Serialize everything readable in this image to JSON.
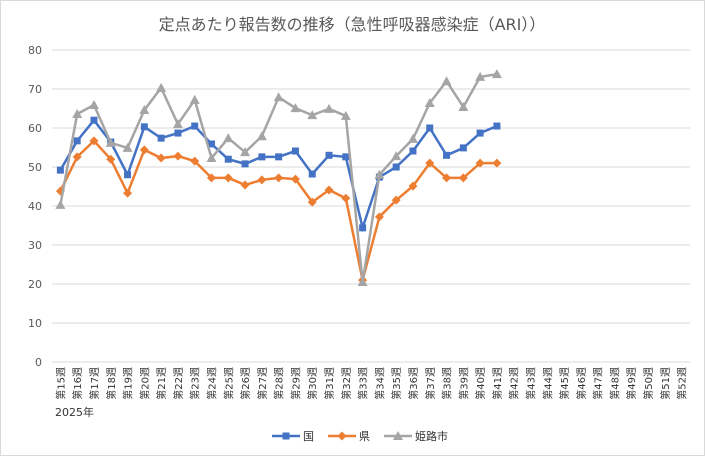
{
  "chart_data": {
    "type": "line",
    "title": "定点あたり報告数の推移（急性呼吸器感染症（ARI））",
    "x_annotation": "2025年",
    "categories": [
      "第15週",
      "第16週",
      "第17週",
      "第18週",
      "第19週",
      "第20週",
      "第21週",
      "第22週",
      "第23週",
      "第24週",
      "第25週",
      "第26週",
      "第27週",
      "第28週",
      "第29週",
      "第30週",
      "第31週",
      "第32週",
      "第33週",
      "第34週",
      "第35週",
      "第36週",
      "第37週",
      "第38週",
      "第39週",
      "第40週",
      "第41週",
      "第42週",
      "第43週",
      "第44週",
      "第45週",
      "第46週",
      "第47週",
      "第48週",
      "第49週",
      "第50週",
      "第51週",
      "第52週"
    ],
    "series": [
      {
        "name": "国",
        "color": "#4472c4",
        "marker": "square",
        "values": [
          49.2,
          56.7,
          62,
          56.4,
          48,
          60.3,
          57.4,
          58.7,
          60.5,
          55.9,
          52,
          50.8,
          52.6,
          52.6,
          54.1,
          48.2,
          53,
          52.6,
          34.4,
          47.4,
          50,
          54.1,
          60,
          53,
          54.9,
          58.7,
          60.5,
          null,
          null,
          null,
          null,
          null,
          null,
          null,
          null,
          null,
          null,
          null
        ]
      },
      {
        "name": "県",
        "color": "#ed7d31",
        "marker": "diamond",
        "values": [
          43.8,
          52.6,
          56.7,
          52,
          43.3,
          54.4,
          52.3,
          52.8,
          51.5,
          47.2,
          47.2,
          45.4,
          46.7,
          47.2,
          46.9,
          41,
          44.1,
          42,
          21,
          37.2,
          41.5,
          45.1,
          51,
          47.2,
          47.2,
          51,
          51,
          null,
          null,
          null,
          null,
          null,
          null,
          null,
          null,
          null,
          null,
          null
        ]
      },
      {
        "name": "姫路市",
        "color": "#a5a5a5",
        "marker": "triangle",
        "values": [
          40.3,
          63.6,
          65.9,
          56.2,
          54.9,
          64.6,
          70.3,
          61,
          67.2,
          52.3,
          57.4,
          53.8,
          57.9,
          67.9,
          65.1,
          63.3,
          64.9,
          63.1,
          20.5,
          48,
          52.8,
          57.2,
          66.4,
          72,
          65.4,
          73.1,
          73.8,
          null,
          null,
          null,
          null,
          null,
          null,
          null,
          null,
          null,
          null,
          null
        ]
      }
    ],
    "ylim": [
      0,
      80
    ],
    "yticks": [
      0,
      10,
      20,
      30,
      40,
      50,
      60,
      70,
      80
    ],
    "grid": true,
    "legend": "bottom"
  }
}
